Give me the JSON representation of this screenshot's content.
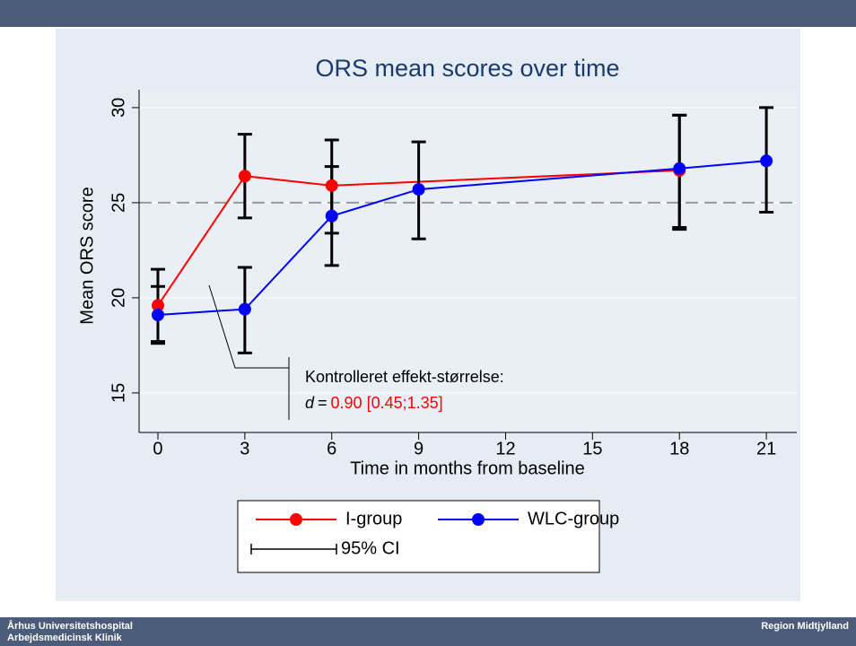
{
  "chart_data": {
    "type": "line",
    "title": "ORS mean scores over time",
    "xlabel": "Time in months from baseline",
    "ylabel": "Mean ORS score",
    "xlim": [
      -0.65,
      22.05
    ],
    "ylim": [
      12.92,
      30.94
    ],
    "xticks": [
      0,
      3,
      6,
      9,
      12,
      15,
      18,
      21
    ],
    "yticks": [
      15,
      20,
      25,
      30
    ],
    "grid": true,
    "reference_line": 25,
    "ci_label": "95% CI",
    "series": [
      {
        "name": "I-group",
        "color": "#ff0000",
        "x": [
          0,
          3,
          6,
          18
        ],
        "values": [
          19.6,
          26.4,
          25.9,
          26.7
        ],
        "ci_low": [
          17.7,
          24.2,
          23.4,
          23.6
        ],
        "ci_high": [
          21.5,
          28.6,
          28.3,
          29.6
        ]
      },
      {
        "name": "WLC-group",
        "color": "#0000ff",
        "x": [
          0,
          3,
          6,
          9,
          18,
          21
        ],
        "values": [
          19.1,
          19.4,
          24.3,
          25.7,
          26.8,
          27.2
        ],
        "ci_low": [
          17.6,
          17.1,
          21.7,
          23.1,
          23.7,
          24.5
        ],
        "ci_high": [
          20.6,
          21.6,
          26.9,
          28.2,
          29.6,
          30.0
        ]
      }
    ],
    "annotation": {
      "text": "Kontrolleret effekt-størrelse:",
      "symbol": "d",
      "equals": "=",
      "effect": "0.90 [0.45;1.35]"
    }
  },
  "footer": {
    "left_line1": "Århus Universitetshospital",
    "left_line2": "Arbejdsmedicinsk Klinik",
    "right": "Region Midtjylland"
  }
}
